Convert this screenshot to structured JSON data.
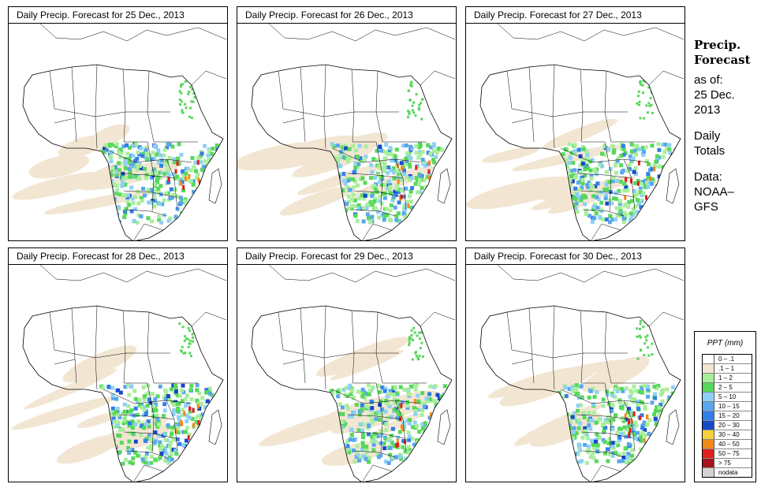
{
  "panels": [
    {
      "title": "Daily Precip. Forecast for  25 Dec., 2013"
    },
    {
      "title": "Daily Precip. Forecast for  26 Dec., 2013"
    },
    {
      "title": "Daily Precip. Forecast for  27 Dec., 2013"
    },
    {
      "title": "Daily Precip. Forecast for  28 Dec., 2013"
    },
    {
      "title": "Daily Precip. Forecast for  29 Dec., 2013"
    },
    {
      "title": "Daily Precip. Forecast for  30 Dec., 2013"
    }
  ],
  "sidebar": {
    "heading1": "Precip.",
    "heading2": "Forecast",
    "asof": "as of:",
    "date1": "25 Dec.",
    "date2": "2013",
    "daily1": "Daily",
    "daily2": "Totals",
    "data1": "Data:",
    "data2": "NOAA–",
    "data3": "GFS"
  },
  "legend": {
    "title": "PPT (mm)",
    "items": [
      {
        "label": "0 – .1",
        "color": "#ffffff"
      },
      {
        "label": ".1 – 1",
        "color": "#f2e6d3"
      },
      {
        "label": "1 – 2",
        "color": "#a9ee9b"
      },
      {
        "label": "2 – 5",
        "color": "#56d85a"
      },
      {
        "label": "5 – 10",
        "color": "#8ed0f5"
      },
      {
        "label": "10 – 15",
        "color": "#5aa6ee"
      },
      {
        "label": "15 – 20",
        "color": "#2f7fe6"
      },
      {
        "label": "20 – 30",
        "color": "#1749c9"
      },
      {
        "label": "30 – 40",
        "color": "#f6d23c"
      },
      {
        "label": "40 – 50",
        "color": "#f08a1a"
      },
      {
        "label": "50 – 75",
        "color": "#e0201c"
      },
      {
        "label": "> 75",
        "color": "#a5141c"
      },
      {
        "label": "nodata",
        "color": "#d3d3d3"
      }
    ]
  }
}
